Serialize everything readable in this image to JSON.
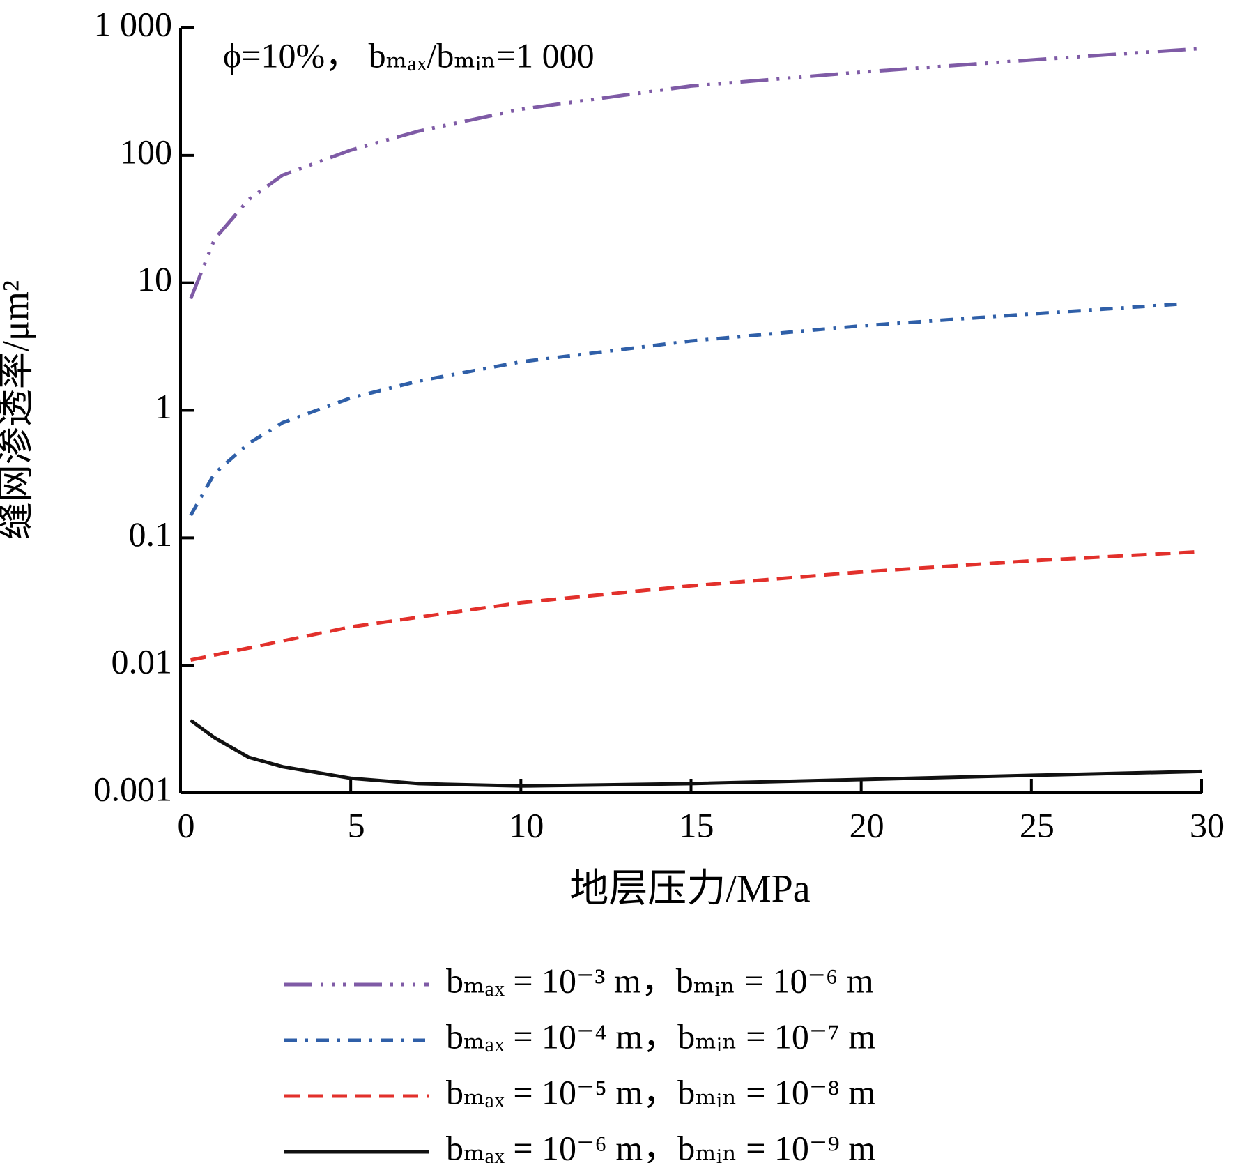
{
  "chart_data": {
    "type": "line",
    "annotation": "ϕ=10%， bₘₐₓ/bₘᵢₙ=1 000",
    "x_label": "地层压力/MPa",
    "y_label": "缝网渗透率/μm²",
    "log_y": true,
    "xlim": [
      0,
      30
    ],
    "xticks": [
      0,
      5,
      10,
      15,
      20,
      25,
      30
    ],
    "ylim": [
      0.001,
      1000
    ],
    "yticks": [
      0.001,
      0.01,
      0.1,
      1,
      10,
      100,
      {
        "value": 1000,
        "label": "1 000"
      }
    ],
    "series": [
      {
        "name": "bₘₐₓ = 10⁻³ m，bₘᵢₙ = 10⁻⁶ m",
        "color": "#7f5ba6",
        "dash": "dash-dot-dot-dot",
        "x": [
          0.3,
          1,
          2,
          3,
          5,
          7,
          10,
          15,
          20,
          25,
          30
        ],
        "values": [
          7.5,
          22,
          45,
          70,
          110,
          155,
          230,
          350,
          450,
          560,
          690
        ]
      },
      {
        "name": "bₘₐₓ = 10⁻⁴ m，bₘᵢₙ = 10⁻⁷ m",
        "color": "#2f5fa8",
        "dash": "dash-dot",
        "x": [
          0.3,
          1,
          2,
          3,
          5,
          7,
          10,
          15,
          20,
          25,
          29.3
        ],
        "values": [
          0.15,
          0.32,
          0.55,
          0.8,
          1.25,
          1.7,
          2.4,
          3.5,
          4.6,
          5.7,
          6.8
        ]
      },
      {
        "name": "bₘₐₓ = 10⁻⁵ m，bₘᵢₙ = 10⁻⁸ m",
        "color": "#e2302b",
        "dash": "dash",
        "x": [
          0.3,
          5,
          10,
          15,
          20,
          25,
          30
        ],
        "values": [
          0.011,
          0.02,
          0.031,
          0.042,
          0.054,
          0.066,
          0.078
        ]
      },
      {
        "name": "bₘₐₓ = 10⁻⁶ m，bₘᵢₙ = 10⁻⁹ m",
        "color": "#111111",
        "dash": "solid",
        "x": [
          0.3,
          1,
          2,
          3,
          5,
          7,
          10,
          15,
          20,
          25,
          30
        ],
        "values": [
          0.0037,
          0.0027,
          0.0019,
          0.0016,
          0.0013,
          0.00118,
          0.00113,
          0.00118,
          0.00127,
          0.00137,
          0.00147
        ]
      }
    ]
  }
}
